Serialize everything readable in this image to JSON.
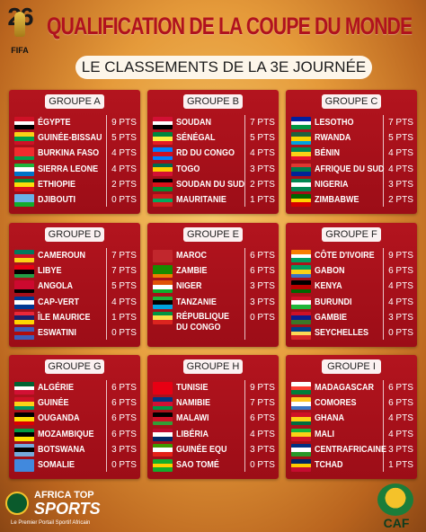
{
  "header": {
    "logo_number": "26",
    "logo_label": "FIFA",
    "title": "QUALIFICATION DE LA COUPE DU MONDE",
    "subtitle": "LE CLASSEMENTS DE LA 3E JOURNÉE"
  },
  "groups": [
    {
      "name": "GROUPE A",
      "rows": [
        {
          "team": "ÉGYPTE",
          "pts": "9 PTS",
          "flag": [
            "#ce1126",
            "#ffffff",
            "#000000"
          ]
        },
        {
          "team": "GUINÉE-BISSAU",
          "pts": "5 PTS",
          "flag": [
            "#fcd116",
            "#009e49",
            "#ce1126"
          ]
        },
        {
          "team": "BURKINA FASO",
          "pts": "4 PTS",
          "flag": [
            "#ef2b2d",
            "#ef2b2d",
            "#009e49"
          ]
        },
        {
          "team": "SIERRA LEONE",
          "pts": "4 PTS",
          "flag": [
            "#1eb53a",
            "#ffffff",
            "#0072c6"
          ]
        },
        {
          "team": "ETHIOPIE",
          "pts": "2 PTS",
          "flag": [
            "#078930",
            "#fcdd09",
            "#da121a"
          ]
        },
        {
          "team": "DJIBOUTI",
          "pts": "0 PTS",
          "flag": [
            "#6ab2e7",
            "#6ab2e7",
            "#12ad2b"
          ]
        }
      ]
    },
    {
      "name": "GROUPE B",
      "rows": [
        {
          "team": "SOUDAN",
          "pts": "7 PTS",
          "flag": [
            "#d21034",
            "#ffffff",
            "#000000"
          ]
        },
        {
          "team": "SÉNÉGAL",
          "pts": "5 PTS",
          "flag": [
            "#00853f",
            "#fdef42",
            "#e31b23"
          ]
        },
        {
          "team": "RD DU CONGO",
          "pts": "4 PTS",
          "flag": [
            "#007fff",
            "#ce1021",
            "#007fff"
          ]
        },
        {
          "team": "TOGO",
          "pts": "3 PTS",
          "flag": [
            "#006a4e",
            "#ffce00",
            "#d21034"
          ]
        },
        {
          "team": "SOUDAN DU SUD",
          "pts": "2 PTS",
          "flag": [
            "#000000",
            "#da121a",
            "#078930"
          ]
        },
        {
          "team": "MAURITANIE",
          "pts": "1 PTS",
          "flag": [
            "#d01c1f",
            "#00a95c",
            "#d01c1f"
          ]
        }
      ]
    },
    {
      "name": "GROUPE C",
      "rows": [
        {
          "team": "LESOTHO",
          "pts": "7 PTS",
          "flag": [
            "#00209f",
            "#ffffff",
            "#009543"
          ]
        },
        {
          "team": "RWANDA",
          "pts": "5 PTS",
          "flag": [
            "#20603d",
            "#fad201",
            "#00a1de"
          ]
        },
        {
          "team": "BÉNIN",
          "pts": "4 PTS",
          "flag": [
            "#008751",
            "#fcd116",
            "#e8112d"
          ]
        },
        {
          "team": "AFRIQUE DU SUD",
          "pts": "4 PTS",
          "flag": [
            "#de3831",
            "#007a4d",
            "#002395"
          ]
        },
        {
          "team": "NIGERIA",
          "pts": "3 PTS",
          "flag": [
            "#008751",
            "#ffffff",
            "#008751"
          ]
        },
        {
          "team": "ZIMBABWE",
          "pts": "2 PTS",
          "flag": [
            "#006400",
            "#ffd200",
            "#d40000"
          ]
        }
      ]
    },
    {
      "name": "GROUPE D",
      "rows": [
        {
          "team": "CAMEROUN",
          "pts": "7 PTS",
          "flag": [
            "#007a5e",
            "#ce1126",
            "#fcd116"
          ]
        },
        {
          "team": "LIBYE",
          "pts": "7 PTS",
          "flag": [
            "#e70013",
            "#000000",
            "#239e46"
          ]
        },
        {
          "team": "ANGOLA",
          "pts": "5 PTS",
          "flag": [
            "#cc092f",
            "#cc092f",
            "#000000"
          ]
        },
        {
          "team": "CAP-VERT",
          "pts": "4 PTS",
          "flag": [
            "#003893",
            "#ffffff",
            "#003893"
          ]
        },
        {
          "team": "ÎLE MAURICE",
          "pts": "1 PTS",
          "flag": [
            "#ea2839",
            "#1a206d",
            "#ffd500"
          ]
        },
        {
          "team": "ESWATINI",
          "pts": "0 PTS",
          "flag": [
            "#3e5eb9",
            "#b10c0c",
            "#3e5eb9"
          ]
        }
      ]
    },
    {
      "name": "GROUPE E",
      "rows": [
        {
          "team": "MAROC",
          "pts": "6 PTS",
          "flag": [
            "#c1272d",
            "#c1272d",
            "#c1272d"
          ]
        },
        {
          "team": "ZAMBIE",
          "pts": "6 PTS",
          "flag": [
            "#198a00",
            "#198a00",
            "#ef7d00"
          ]
        },
        {
          "team": "NIGER",
          "pts": "3 PTS",
          "flag": [
            "#e05206",
            "#ffffff",
            "#0db02b"
          ]
        },
        {
          "team": "TANZANIE",
          "pts": "3 PTS",
          "flag": [
            "#1eb53a",
            "#000000",
            "#00a3dd"
          ]
        },
        {
          "team": "RÉPUBLIQUE DU CONGO",
          "pts": "0 PTS",
          "flag": [
            "#009543",
            "#fbde4a",
            "#dc241f"
          ]
        }
      ]
    },
    {
      "name": "GROUPE F",
      "rows": [
        {
          "team": "CÔTE D'IVOIRE",
          "pts": "9 PTS",
          "flag": [
            "#f77f00",
            "#ffffff",
            "#009e60"
          ]
        },
        {
          "team": "GABON",
          "pts": "6 PTS",
          "flag": [
            "#009e60",
            "#fcd116",
            "#3a75c4"
          ]
        },
        {
          "team": "KENYA",
          "pts": "4 PTS",
          "flag": [
            "#000000",
            "#bb0000",
            "#006600"
          ]
        },
        {
          "team": "BURUNDI",
          "pts": "4 PTS",
          "flag": [
            "#ce1126",
            "#ffffff",
            "#1eb53a"
          ]
        },
        {
          "team": "GAMBIE",
          "pts": "3 PTS",
          "flag": [
            "#ce1126",
            "#0c1c8c",
            "#3a7728"
          ]
        },
        {
          "team": "SEYCHELLES",
          "pts": "0 PTS",
          "flag": [
            "#003f87",
            "#fcd856",
            "#d62828"
          ]
        }
      ]
    },
    {
      "name": "GROUPE G",
      "rows": [
        {
          "team": "ALGÉRIE",
          "pts": "6 PTS",
          "flag": [
            "#006233",
            "#ffffff",
            "#d21034"
          ]
        },
        {
          "team": "GUINÉE",
          "pts": "6 PTS",
          "flag": [
            "#ce1126",
            "#fcd116",
            "#009460"
          ]
        },
        {
          "team": "OUGANDA",
          "pts": "6 PTS",
          "flag": [
            "#000000",
            "#fcdc04",
            "#d90000"
          ]
        },
        {
          "team": "MOZAMBIQUE",
          "pts": "6 PTS",
          "flag": [
            "#009a44",
            "#000000",
            "#fce100"
          ]
        },
        {
          "team": "BOTSWANA",
          "pts": "3 PTS",
          "flag": [
            "#75aadb",
            "#000000",
            "#75aadb"
          ]
        },
        {
          "team": "SOMALIE",
          "pts": "0 PTS",
          "flag": [
            "#4189dd",
            "#4189dd",
            "#4189dd"
          ]
        }
      ]
    },
    {
      "name": "GROUPE H",
      "rows": [
        {
          "team": "TUNISIE",
          "pts": "9 PTS",
          "flag": [
            "#e70013",
            "#e70013",
            "#e70013"
          ]
        },
        {
          "team": "NAMIBIE",
          "pts": "7 PTS",
          "flag": [
            "#003580",
            "#d21034",
            "#009543"
          ]
        },
        {
          "team": "MALAWI",
          "pts": "6 PTS",
          "flag": [
            "#000000",
            "#ce1126",
            "#339e35"
          ]
        },
        {
          "team": "LIBÉRIA",
          "pts": "4 PTS",
          "flag": [
            "#bf0a30",
            "#ffffff",
            "#002868"
          ]
        },
        {
          "team": "GUINÉE EQU",
          "pts": "3 PTS",
          "flag": [
            "#3e9a00",
            "#ffffff",
            "#e32118"
          ]
        },
        {
          "team": "SAO TOMÉ",
          "pts": "0 PTS",
          "flag": [
            "#12ad2b",
            "#ffce00",
            "#12ad2b"
          ]
        }
      ]
    },
    {
      "name": "GROUPE I",
      "rows": [
        {
          "team": "MADAGASCAR",
          "pts": "6 PTS",
          "flag": [
            "#ffffff",
            "#fc3d32",
            "#007e3a"
          ]
        },
        {
          "team": "COMORES",
          "pts": "6 PTS",
          "flag": [
            "#ffc61e",
            "#ffffff",
            "#3a75c4"
          ]
        },
        {
          "team": "GHANA",
          "pts": "4 PTS",
          "flag": [
            "#ce1126",
            "#fcd116",
            "#006b3f"
          ]
        },
        {
          "team": "MALI",
          "pts": "4 PTS",
          "flag": [
            "#14b53a",
            "#fcd116",
            "#ce1126"
          ]
        },
        {
          "team": "CENTRAFRICAINE",
          "pts": "3 PTS",
          "flag": [
            "#003082",
            "#ffffff",
            "#289728"
          ]
        },
        {
          "team": "TCHAD",
          "pts": "1 PTS",
          "flag": [
            "#002664",
            "#fecb00",
            "#c60c30"
          ]
        }
      ]
    }
  ],
  "footer": {
    "brand_line1": "AFRICA TOP",
    "brand_line2": "SPORTS",
    "tagline": "Le Premier Portail Sportif Africain",
    "caf": "CAF"
  }
}
